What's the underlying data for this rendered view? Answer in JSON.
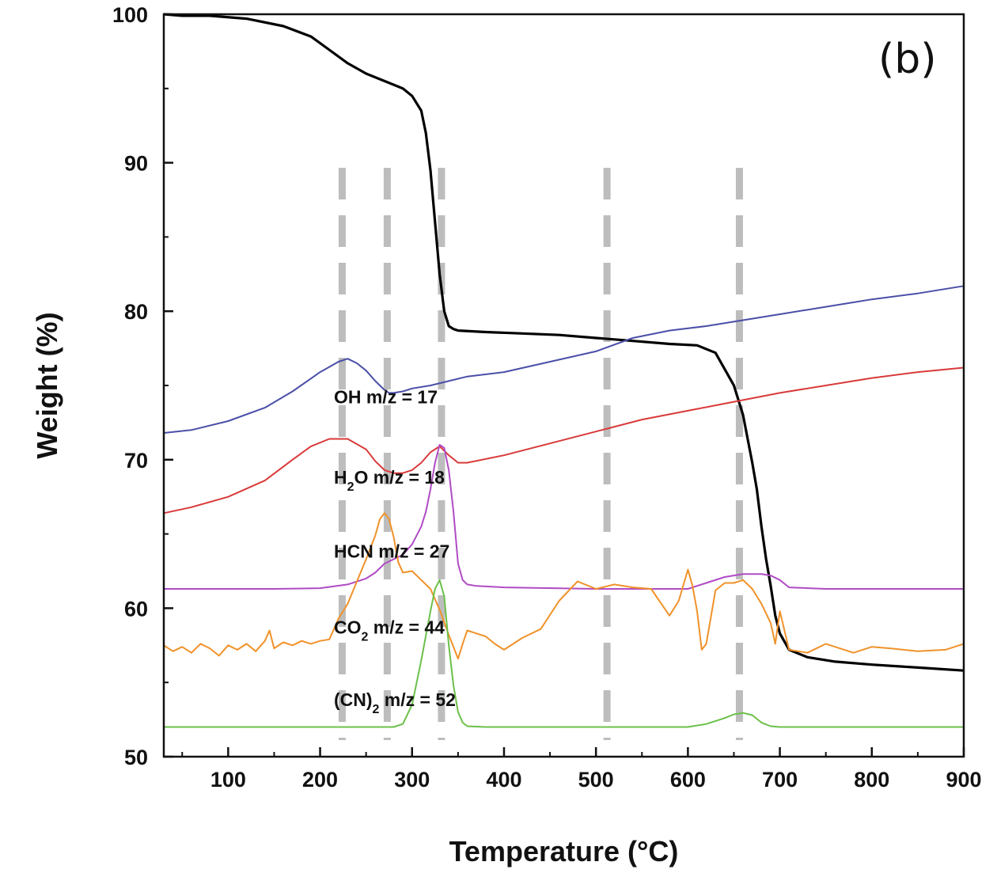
{
  "chart_data": {
    "type": "line",
    "title": "",
    "panel_label": "(b)",
    "xlabel": "Temperature (°C)",
    "ylabel": "Weight (%)",
    "xlim": [
      30,
      900
    ],
    "ylim": [
      50,
      100
    ],
    "x_ticks": [
      100,
      200,
      300,
      400,
      500,
      600,
      700,
      800,
      900
    ],
    "y_ticks": [
      50,
      60,
      70,
      80,
      90,
      100
    ],
    "grid": false,
    "legend": "none",
    "dashed_markers_x": [
      224,
      273,
      332,
      512,
      656
    ],
    "marker_color": "#bdbdbd",
    "series": [
      {
        "key": "weight",
        "label": "",
        "color": "#000000",
        "x": [
          30,
          50,
          80,
          120,
          160,
          190,
          210,
          230,
          250,
          270,
          290,
          300,
          310,
          315,
          320,
          325,
          330,
          335,
          340,
          345,
          350,
          380,
          420,
          460,
          500,
          540,
          580,
          610,
          630,
          650,
          660,
          670,
          675,
          680,
          685,
          690,
          695,
          700,
          710,
          730,
          760,
          800,
          850,
          900
        ],
        "y": [
          100,
          99.9,
          99.9,
          99.7,
          99.2,
          98.5,
          97.6,
          96.7,
          96,
          95.5,
          95,
          94.5,
          93.5,
          92,
          89.5,
          86,
          82.5,
          80,
          79,
          78.8,
          78.7,
          78.6,
          78.5,
          78.4,
          78.2,
          78,
          77.8,
          77.7,
          77.2,
          75,
          73,
          69.8,
          68,
          65.5,
          63.3,
          61.5,
          59.5,
          58.3,
          57.2,
          56.7,
          56.4,
          56.2,
          56,
          55.8
        ]
      },
      {
        "key": "oh",
        "label": "OH m/z = 17",
        "label_at": [
          215,
          73.8
        ],
        "color": "#4a4fa8",
        "x": [
          30,
          60,
          100,
          140,
          170,
          200,
          220,
          230,
          240,
          250,
          260,
          270,
          275,
          280,
          290,
          300,
          320,
          340,
          360,
          400,
          450,
          500,
          540,
          580,
          620,
          660,
          700,
          750,
          800,
          850,
          900
        ],
        "y": [
          71.8,
          72,
          72.6,
          73.5,
          74.6,
          75.9,
          76.6,
          76.8,
          76.5,
          76,
          75.3,
          74.7,
          74.5,
          74.5,
          74.6,
          74.8,
          75,
          75.3,
          75.6,
          75.9,
          76.6,
          77.3,
          78.2,
          78.7,
          79,
          79.4,
          79.8,
          80.3,
          80.8,
          81.2,
          81.7
        ]
      },
      {
        "key": "h2o",
        "label": "H₂O m/z = 18",
        "label_sub": {
          "pre": "H",
          "sub": "2",
          "post": "O m/z = 18"
        },
        "label_at": [
          215,
          68.4
        ],
        "color": "#d93a3a",
        "x": [
          30,
          60,
          100,
          140,
          170,
          190,
          210,
          230,
          250,
          260,
          270,
          280,
          290,
          300,
          310,
          320,
          330,
          340,
          350,
          360,
          400,
          450,
          500,
          550,
          600,
          650,
          700,
          750,
          800,
          850,
          900
        ],
        "y": [
          66.4,
          66.8,
          67.5,
          68.6,
          70,
          70.9,
          71.4,
          71.4,
          70.7,
          69.9,
          69.3,
          69.1,
          69.1,
          69.3,
          69.8,
          70.5,
          70.9,
          70.3,
          69.8,
          69.8,
          70.3,
          71.1,
          71.9,
          72.7,
          73.3,
          73.9,
          74.5,
          75,
          75.5,
          75.9,
          76.2
        ]
      },
      {
        "key": "hcn",
        "label": "HCN m/z = 27",
        "label_at": [
          215,
          63.4
        ],
        "color": "#b04bc4",
        "x": [
          30,
          100,
          150,
          200,
          230,
          250,
          260,
          270,
          280,
          290,
          300,
          310,
          315,
          320,
          325,
          330,
          335,
          340,
          345,
          350,
          355,
          360,
          370,
          400,
          500,
          600,
          620,
          640,
          660,
          680,
          690,
          700,
          710,
          750,
          800,
          900
        ],
        "y": [
          61.3,
          61.3,
          61.3,
          61.35,
          61.6,
          62,
          62.4,
          63,
          63.3,
          63.6,
          64.3,
          65.5,
          66.5,
          68,
          69.8,
          71,
          70.8,
          69.3,
          66.5,
          63,
          61.9,
          61.6,
          61.5,
          61.4,
          61.3,
          61.3,
          61.7,
          62.1,
          62.3,
          62.3,
          62.2,
          61.9,
          61.4,
          61.3,
          61.3,
          61.3
        ]
      },
      {
        "key": "co2",
        "label": "CO₂ m/z = 44",
        "label_sub": {
          "pre": "CO",
          "sub": "2",
          "post": " m/z = 44"
        },
        "label_at": [
          215,
          58.3
        ],
        "color": "#f0922a",
        "x": [
          30,
          40,
          50,
          60,
          70,
          80,
          90,
          100,
          110,
          120,
          130,
          140,
          145,
          150,
          160,
          170,
          180,
          190,
          200,
          210,
          215,
          220,
          230,
          240,
          250,
          260,
          265,
          270,
          275,
          280,
          285,
          290,
          300,
          310,
          320,
          330,
          340,
          345,
          350,
          355,
          360,
          370,
          380,
          390,
          400,
          420,
          440,
          460,
          480,
          500,
          520,
          540,
          560,
          580,
          590,
          600,
          605,
          610,
          615,
          620,
          630,
          640,
          650,
          660,
          670,
          680,
          690,
          695,
          700,
          710,
          720,
          730,
          750,
          780,
          800,
          820,
          850,
          880,
          900
        ],
        "y": [
          57.5,
          57.1,
          57.4,
          57,
          57.6,
          57.3,
          56.8,
          57.5,
          57.2,
          57.6,
          57.1,
          57.8,
          58.5,
          57.3,
          57.7,
          57.5,
          57.8,
          57.6,
          57.8,
          57.9,
          58.6,
          59.3,
          60.3,
          61.8,
          63.3,
          64.9,
          66,
          66.4,
          66,
          64.8,
          63.1,
          62.4,
          62.5,
          61.9,
          61.3,
          59.9,
          58.2,
          57.4,
          56.6,
          57.6,
          58.5,
          58.3,
          58.1,
          57.6,
          57.2,
          58,
          58.6,
          60.5,
          61.8,
          61.3,
          61.6,
          61.4,
          61.3,
          59.5,
          60.5,
          62.6,
          61.5,
          59.8,
          57.2,
          57.6,
          61.2,
          61.7,
          61.7,
          61.9,
          61.3,
          60.3,
          59,
          57.6,
          59.8,
          57.2,
          57.1,
          57,
          57.6,
          57,
          57.4,
          57.3,
          57.1,
          57.2,
          57.6
        ]
      },
      {
        "key": "cn2",
        "label": "(CN)₂ m/z = 52",
        "label_sub": {
          "pre": "(CN)",
          "sub": "2",
          "post": " m/z = 52"
        },
        "label_at": [
          215,
          53.4
        ],
        "color": "#6cc04a",
        "x": [
          30,
          100,
          200,
          280,
          290,
          300,
          310,
          320,
          325,
          330,
          335,
          340,
          345,
          350,
          355,
          360,
          380,
          400,
          500,
          600,
          620,
          640,
          650,
          660,
          670,
          680,
          690,
          700,
          800,
          900
        ],
        "y": [
          52,
          52,
          52,
          52,
          52.2,
          53.5,
          56.5,
          59.8,
          61.3,
          61.9,
          60.8,
          57.5,
          54.8,
          53,
          52.3,
          52.05,
          52,
          52,
          52,
          52,
          52.2,
          52.6,
          52.85,
          52.95,
          52.8,
          52.3,
          52.05,
          52,
          52,
          52
        ]
      }
    ]
  }
}
